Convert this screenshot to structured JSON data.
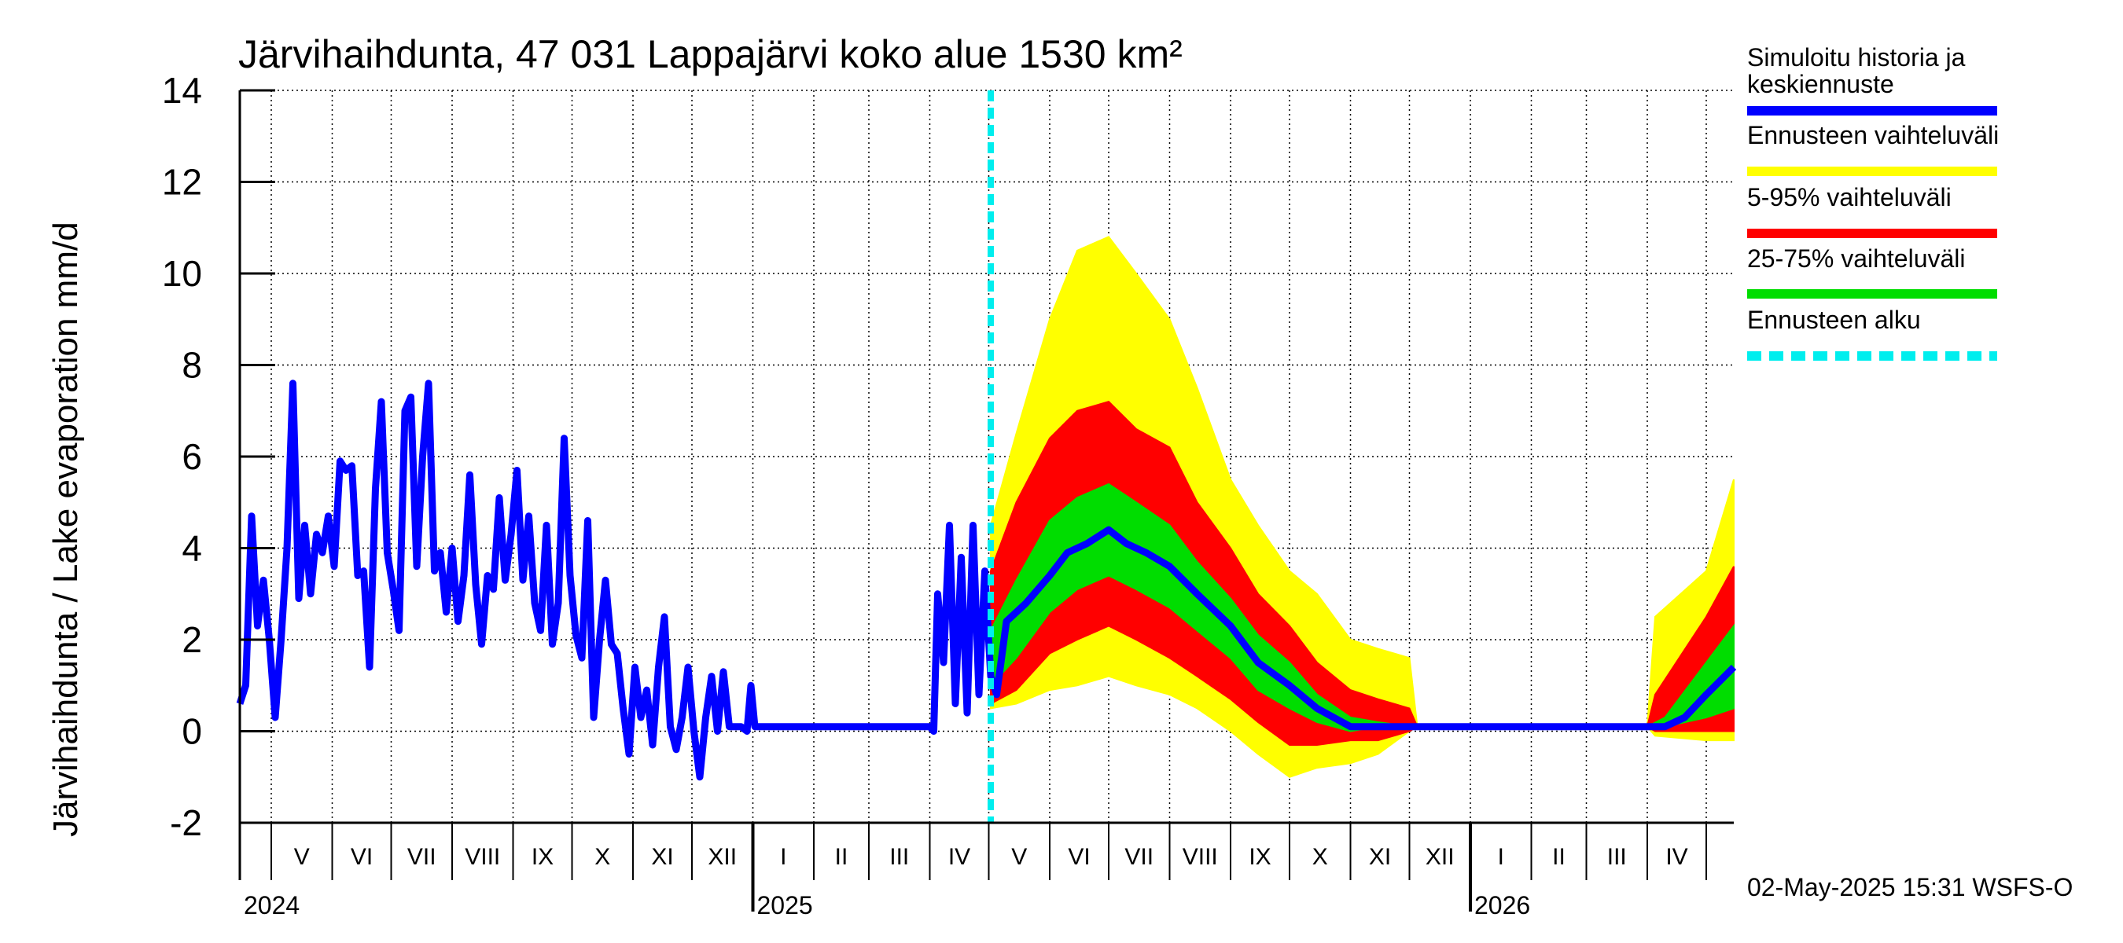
{
  "chart_data": {
    "type": "area",
    "title": "Järvihaihdunta, 47 031 Lappajärvi koko alue 1530 km²",
    "ylabel": "Järvihaihdunta / Lake evaporation   mm/d",
    "ylim": [
      -2,
      14
    ],
    "yticks": [
      "-2",
      "0",
      "2",
      "4",
      "6",
      "8",
      "10",
      "12",
      "14"
    ],
    "x_start": "2024-04-15",
    "x_end": "2026-05-15",
    "forecast_start": "2025-05-02",
    "months": [
      {
        "label": "V",
        "date": "2024-05-01"
      },
      {
        "label": "VI",
        "date": "2024-06-01"
      },
      {
        "label": "VII",
        "date": "2024-07-01"
      },
      {
        "label": "VIII",
        "date": "2024-08-01"
      },
      {
        "label": "IX",
        "date": "2024-09-01"
      },
      {
        "label": "X",
        "date": "2024-10-01"
      },
      {
        "label": "XI",
        "date": "2024-11-01"
      },
      {
        "label": "XII",
        "date": "2024-12-01"
      },
      {
        "label": "I",
        "date": "2025-01-01"
      },
      {
        "label": "II",
        "date": "2025-02-01"
      },
      {
        "label": "III",
        "date": "2025-03-01"
      },
      {
        "label": "IV",
        "date": "2025-04-01"
      },
      {
        "label": "V",
        "date": "2025-05-01"
      },
      {
        "label": "VI",
        "date": "2025-06-01"
      },
      {
        "label": "VII",
        "date": "2025-07-01"
      },
      {
        "label": "VIII",
        "date": "2025-08-01"
      },
      {
        "label": "IX",
        "date": "2025-09-01"
      },
      {
        "label": "X",
        "date": "2025-10-01"
      },
      {
        "label": "XI",
        "date": "2025-11-01"
      },
      {
        "label": "XII",
        "date": "2025-12-01"
      },
      {
        "label": "I",
        "date": "2026-01-01"
      },
      {
        "label": "II",
        "date": "2026-02-01"
      },
      {
        "label": "III",
        "date": "2026-03-01"
      },
      {
        "label": "IV",
        "date": "2026-04-01"
      },
      {
        "label": "",
        "date": "2026-05-01"
      }
    ],
    "years": [
      {
        "label": "2024",
        "date": "2024-04-15"
      },
      {
        "label": "2025",
        "date": "2025-01-01"
      },
      {
        "label": "2026",
        "date": "2026-01-01"
      }
    ],
    "series": [
      {
        "name": "Simuloitu historia ja keskiennuste",
        "color": "#0000ff",
        "points": [
          [
            "2024-04-15",
            0.6
          ],
          [
            "2024-04-18",
            1.0
          ],
          [
            "2024-04-21",
            4.7
          ],
          [
            "2024-04-24",
            2.3
          ],
          [
            "2024-04-27",
            3.3
          ],
          [
            "2024-04-30",
            2.0
          ],
          [
            "2024-05-03",
            0.3
          ],
          [
            "2024-05-06",
            2.0
          ],
          [
            "2024-05-09",
            4.0
          ],
          [
            "2024-05-12",
            7.6
          ],
          [
            "2024-05-15",
            2.9
          ],
          [
            "2024-05-18",
            4.5
          ],
          [
            "2024-05-21",
            3.0
          ],
          [
            "2024-05-24",
            4.3
          ],
          [
            "2024-05-27",
            3.9
          ],
          [
            "2024-05-30",
            4.7
          ],
          [
            "2024-06-02",
            3.6
          ],
          [
            "2024-06-05",
            5.9
          ],
          [
            "2024-06-08",
            5.7
          ],
          [
            "2024-06-11",
            5.8
          ],
          [
            "2024-06-14",
            3.4
          ],
          [
            "2024-06-17",
            3.5
          ],
          [
            "2024-06-20",
            1.4
          ],
          [
            "2024-06-23",
            5.3
          ],
          [
            "2024-06-26",
            7.2
          ],
          [
            "2024-06-29",
            3.9
          ],
          [
            "2024-07-02",
            3.1
          ],
          [
            "2024-07-05",
            2.2
          ],
          [
            "2024-07-08",
            7.0
          ],
          [
            "2024-07-11",
            7.3
          ],
          [
            "2024-07-14",
            3.6
          ],
          [
            "2024-07-17",
            6.0
          ],
          [
            "2024-07-20",
            7.6
          ],
          [
            "2024-07-23",
            3.5
          ],
          [
            "2024-07-26",
            3.9
          ],
          [
            "2024-07-29",
            2.6
          ],
          [
            "2024-08-01",
            4.0
          ],
          [
            "2024-08-04",
            2.4
          ],
          [
            "2024-08-07",
            3.4
          ],
          [
            "2024-08-10",
            5.6
          ],
          [
            "2024-08-13",
            3.2
          ],
          [
            "2024-08-16",
            1.9
          ],
          [
            "2024-08-19",
            3.4
          ],
          [
            "2024-08-22",
            3.1
          ],
          [
            "2024-08-25",
            5.1
          ],
          [
            "2024-08-28",
            3.3
          ],
          [
            "2024-08-31",
            4.3
          ],
          [
            "2024-09-03",
            5.7
          ],
          [
            "2024-09-06",
            3.3
          ],
          [
            "2024-09-09",
            4.7
          ],
          [
            "2024-09-12",
            2.8
          ],
          [
            "2024-09-15",
            2.2
          ],
          [
            "2024-09-18",
            4.5
          ],
          [
            "2024-09-21",
            1.9
          ],
          [
            "2024-09-24",
            2.8
          ],
          [
            "2024-09-27",
            6.4
          ],
          [
            "2024-09-30",
            3.4
          ],
          [
            "2024-10-03",
            2.1
          ],
          [
            "2024-10-06",
            1.6
          ],
          [
            "2024-10-09",
            4.6
          ],
          [
            "2024-10-12",
            0.3
          ],
          [
            "2024-10-15",
            2.0
          ],
          [
            "2024-10-18",
            3.3
          ],
          [
            "2024-10-21",
            1.9
          ],
          [
            "2024-10-24",
            1.7
          ],
          [
            "2024-10-27",
            0.5
          ],
          [
            "2024-10-30",
            -0.5
          ],
          [
            "2024-11-02",
            1.4
          ],
          [
            "2024-11-05",
            0.3
          ],
          [
            "2024-11-08",
            0.9
          ],
          [
            "2024-11-11",
            -0.3
          ],
          [
            "2024-11-14",
            1.4
          ],
          [
            "2024-11-17",
            2.5
          ],
          [
            "2024-11-20",
            0.1
          ],
          [
            "2024-11-23",
            -0.4
          ],
          [
            "2024-11-26",
            0.3
          ],
          [
            "2024-11-29",
            1.4
          ],
          [
            "2024-12-02",
            0.0
          ],
          [
            "2024-12-05",
            -1.0
          ],
          [
            "2024-12-08",
            0.3
          ],
          [
            "2024-12-11",
            1.2
          ],
          [
            "2024-12-14",
            0.0
          ],
          [
            "2024-12-17",
            1.3
          ],
          [
            "2024-12-20",
            0.1
          ],
          [
            "2024-12-23",
            0.1
          ],
          [
            "2024-12-26",
            0.1
          ],
          [
            "2024-12-29",
            0.0
          ],
          [
            "2024-12-31",
            1.0
          ],
          [
            "2025-01-02",
            0.1
          ],
          [
            "2025-04-01",
            0.1
          ],
          [
            "2025-04-03",
            0.0
          ],
          [
            "2025-04-05",
            3.0
          ],
          [
            "2025-04-08",
            1.5
          ],
          [
            "2025-04-11",
            4.5
          ],
          [
            "2025-04-14",
            0.6
          ],
          [
            "2025-04-17",
            3.8
          ],
          [
            "2025-04-20",
            0.4
          ],
          [
            "2025-04-23",
            4.5
          ],
          [
            "2025-04-26",
            0.8
          ],
          [
            "2025-04-29",
            3.5
          ],
          [
            "2025-05-02",
            1.2
          ],
          [
            "2025-05-05",
            0.8
          ],
          [
            "2025-05-10",
            2.4
          ],
          [
            "2025-05-20",
            2.8
          ],
          [
            "2025-06-01",
            3.4
          ],
          [
            "2025-06-10",
            3.9
          ],
          [
            "2025-06-20",
            4.1
          ],
          [
            "2025-07-01",
            4.4
          ],
          [
            "2025-07-10",
            4.1
          ],
          [
            "2025-07-20",
            3.9
          ],
          [
            "2025-08-01",
            3.6
          ],
          [
            "2025-08-15",
            3.0
          ],
          [
            "2025-09-01",
            2.3
          ],
          [
            "2025-09-15",
            1.5
          ],
          [
            "2025-10-01",
            1.0
          ],
          [
            "2025-10-15",
            0.5
          ],
          [
            "2025-11-01",
            0.1
          ],
          [
            "2025-12-01",
            0.1
          ],
          [
            "2026-04-01",
            0.1
          ],
          [
            "2026-04-10",
            0.1
          ],
          [
            "2026-04-20",
            0.3
          ],
          [
            "2026-05-01",
            0.8
          ],
          [
            "2026-05-15",
            1.4
          ]
        ]
      },
      {
        "name": "Ennusteen vaihteluväli",
        "color": "#ffff00",
        "band": [
          [
            "2025-05-02",
            0.5,
            4.5
          ],
          [
            "2025-05-15",
            0.6,
            6.5
          ],
          [
            "2025-06-01",
            0.9,
            9.0
          ],
          [
            "2025-06-15",
            1.0,
            10.5
          ],
          [
            "2025-07-01",
            1.2,
            10.8
          ],
          [
            "2025-07-15",
            1.0,
            10.0
          ],
          [
            "2025-08-01",
            0.8,
            9.0
          ],
          [
            "2025-08-15",
            0.5,
            7.5
          ],
          [
            "2025-09-01",
            0.0,
            5.5
          ],
          [
            "2025-09-15",
            -0.5,
            4.5
          ],
          [
            "2025-10-01",
            -1.0,
            3.5
          ],
          [
            "2025-10-15",
            -0.8,
            3.0
          ],
          [
            "2025-11-01",
            -0.7,
            2.0
          ],
          [
            "2025-11-15",
            -0.5,
            1.8
          ],
          [
            "2025-12-01",
            0.0,
            1.6
          ],
          [
            "2025-12-05",
            0.1,
            0.1
          ],
          [
            "2026-04-01",
            0.1,
            0.1
          ],
          [
            "2026-04-05",
            -0.1,
            2.5
          ],
          [
            "2026-05-01",
            -0.2,
            3.5
          ],
          [
            "2026-05-15",
            -0.2,
            5.5
          ]
        ]
      },
      {
        "name": "5-95% vaihteluväli",
        "color": "#ff0000",
        "band": [
          [
            "2025-05-02",
            0.6,
            3.5
          ],
          [
            "2025-05-15",
            0.9,
            5.0
          ],
          [
            "2025-06-01",
            1.7,
            6.4
          ],
          [
            "2025-06-15",
            2.0,
            7.0
          ],
          [
            "2025-07-01",
            2.3,
            7.2
          ],
          [
            "2025-07-15",
            2.0,
            6.6
          ],
          [
            "2025-08-01",
            1.6,
            6.2
          ],
          [
            "2025-08-15",
            1.2,
            5.0
          ],
          [
            "2025-09-01",
            0.7,
            4.0
          ],
          [
            "2025-09-15",
            0.2,
            3.0
          ],
          [
            "2025-10-01",
            -0.3,
            2.3
          ],
          [
            "2025-10-15",
            -0.3,
            1.5
          ],
          [
            "2025-11-01",
            -0.2,
            0.9
          ],
          [
            "2025-11-15",
            -0.2,
            0.7
          ],
          [
            "2025-12-01",
            0.0,
            0.5
          ],
          [
            "2025-12-05",
            0.1,
            0.1
          ],
          [
            "2026-04-01",
            0.1,
            0.1
          ],
          [
            "2026-04-05",
            0.0,
            0.8
          ],
          [
            "2026-05-01",
            0.0,
            2.5
          ],
          [
            "2026-05-15",
            0.0,
            3.6
          ]
        ]
      },
      {
        "name": "25-75% vaihteluväli",
        "color": "#00dd00",
        "band": [
          [
            "2025-05-02",
            1.0,
            2.2
          ],
          [
            "2025-05-15",
            1.6,
            3.3
          ],
          [
            "2025-06-01",
            2.6,
            4.6
          ],
          [
            "2025-06-15",
            3.1,
            5.1
          ],
          [
            "2025-07-01",
            3.4,
            5.4
          ],
          [
            "2025-07-15",
            3.1,
            5.0
          ],
          [
            "2025-08-01",
            2.7,
            4.5
          ],
          [
            "2025-08-15",
            2.2,
            3.7
          ],
          [
            "2025-09-01",
            1.6,
            2.9
          ],
          [
            "2025-09-15",
            0.9,
            2.1
          ],
          [
            "2025-10-01",
            0.5,
            1.5
          ],
          [
            "2025-10-15",
            0.2,
            0.8
          ],
          [
            "2025-11-01",
            0.0,
            0.3
          ],
          [
            "2025-11-15",
            0.1,
            0.2
          ],
          [
            "2025-12-01",
            0.1,
            0.1
          ],
          [
            "2026-04-01",
            0.1,
            0.1
          ],
          [
            "2026-04-10",
            0.1,
            0.3
          ],
          [
            "2026-05-01",
            0.3,
            1.5
          ],
          [
            "2026-05-15",
            0.5,
            2.3
          ]
        ]
      }
    ],
    "legend": [
      {
        "label": "Simuloitu historia ja keskiennuste",
        "color": "#0000ff",
        "style": "solid"
      },
      {
        "label": "Ennusteen vaihteluväli",
        "color": "#ffff00",
        "style": "solid"
      },
      {
        "label": "5-95% vaihteluväli",
        "color": "#ff0000",
        "style": "solid"
      },
      {
        "label": "25-75% vaihteluväli",
        "color": "#00dd00",
        "style": "solid"
      },
      {
        "label": "Ennusteen alku",
        "color": "#00eeee",
        "style": "dashed"
      }
    ],
    "legend_placement": "right",
    "grid": true
  },
  "footer": "02-May-2025 15:31 WSFS-O"
}
